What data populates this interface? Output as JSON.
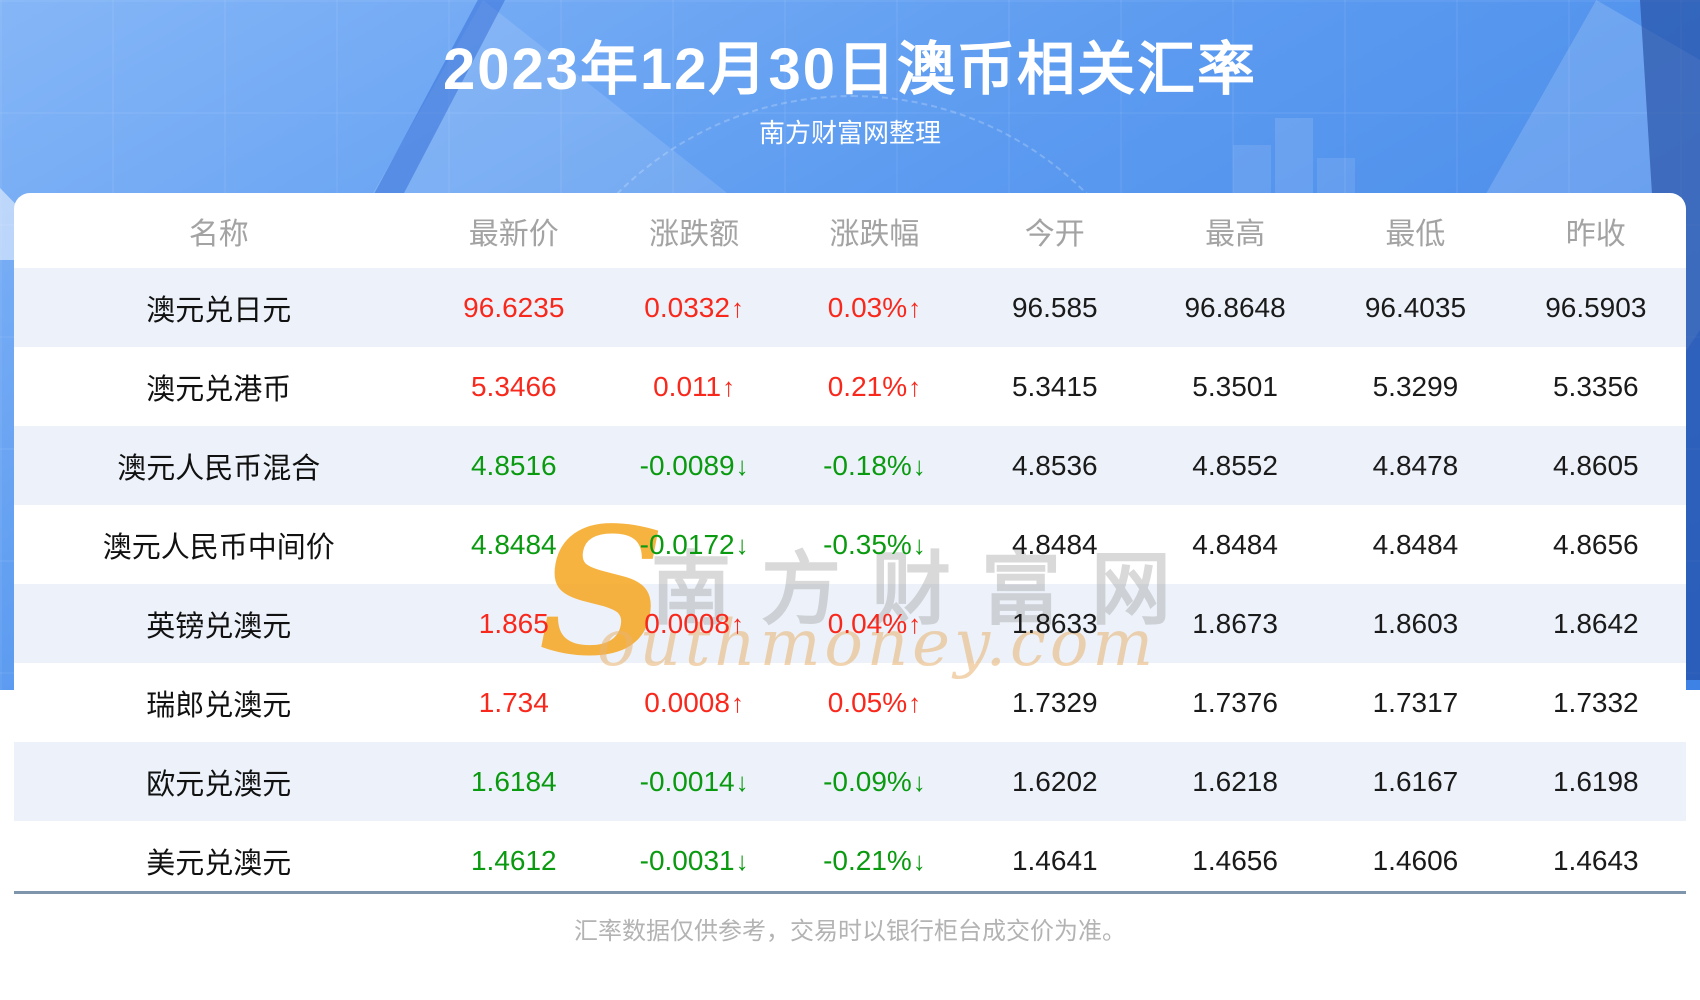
{
  "header": {
    "title": "2023年12月30日澳币相关汇率",
    "subtitle": "南方财富网整理"
  },
  "table": {
    "columns": [
      "名称",
      "最新价",
      "涨跌额",
      "涨跌幅",
      "今开",
      "最高",
      "最低",
      "昨收"
    ],
    "rows": [
      {
        "name": "澳元兑日元",
        "latest": "96.6235",
        "change": "0.0332",
        "change_pct": "0.03%",
        "open": "96.585",
        "high": "96.8648",
        "low": "96.4035",
        "prev_close": "96.5903",
        "trend": "up"
      },
      {
        "name": "澳元兑港币",
        "latest": "5.3466",
        "change": "0.011",
        "change_pct": "0.21%",
        "open": "5.3415",
        "high": "5.3501",
        "low": "5.3299",
        "prev_close": "5.3356",
        "trend": "up"
      },
      {
        "name": "澳元人民币混合",
        "latest": "4.8516",
        "change": "-0.0089",
        "change_pct": "-0.18%",
        "open": "4.8536",
        "high": "4.8552",
        "low": "4.8478",
        "prev_close": "4.8605",
        "trend": "down"
      },
      {
        "name": "澳元人民币中间价",
        "latest": "4.8484",
        "change": "-0.0172",
        "change_pct": "-0.35%",
        "open": "4.8484",
        "high": "4.8484",
        "low": "4.8484",
        "prev_close": "4.8656",
        "trend": "down"
      },
      {
        "name": "英镑兑澳元",
        "latest": "1.865",
        "change": "0.0008",
        "change_pct": "0.04%",
        "open": "1.8633",
        "high": "1.8673",
        "low": "1.8603",
        "prev_close": "1.8642",
        "trend": "up"
      },
      {
        "name": "瑞郎兑澳元",
        "latest": "1.734",
        "change": "0.0008",
        "change_pct": "0.05%",
        "open": "1.7329",
        "high": "1.7376",
        "low": "1.7317",
        "prev_close": "1.7332",
        "trend": "up"
      },
      {
        "name": "欧元兑澳元",
        "latest": "1.6184",
        "change": "-0.0014",
        "change_pct": "-0.09%",
        "open": "1.6202",
        "high": "1.6218",
        "low": "1.6167",
        "prev_close": "1.6198",
        "trend": "down"
      },
      {
        "name": "美元兑澳元",
        "latest": "1.4612",
        "change": "-0.0031",
        "change_pct": "-0.21%",
        "open": "1.4641",
        "high": "1.4656",
        "low": "1.4606",
        "prev_close": "1.4643",
        "trend": "down"
      }
    ]
  },
  "icons": {
    "up": "↑",
    "down": "↓"
  },
  "watermark": {
    "s": "S",
    "cn": "南方财富网",
    "en": "outhmoney.com"
  },
  "footer": {
    "disclaimer": "汇率数据仅供参考，交易时以银行柜台成交价为准。"
  },
  "colors": {
    "up_red": "#f8281c",
    "down_green": "#0a9a10",
    "stripe_blue": "#edf2fa",
    "header_gray": "#a3a3a3",
    "divider_blue_gray": "#7e95ac",
    "background_blue": "#5c9bf0",
    "watermark_orange": "#f6a61e"
  },
  "chart_data": {
    "type": "table",
    "title": "2023年12月30日澳币相关汇率",
    "subtitle": "南方财富网整理",
    "columns": [
      "名称",
      "最新价",
      "涨跌额",
      "涨跌幅",
      "今开",
      "最高",
      "最低",
      "昨收"
    ],
    "rows": [
      [
        "澳元兑日元",
        96.6235,
        0.0332,
        "0.03%",
        96.585,
        96.8648,
        96.4035,
        96.5903
      ],
      [
        "澳元兑港币",
        5.3466,
        0.011,
        "0.21%",
        5.3415,
        5.3501,
        5.3299,
        5.3356
      ],
      [
        "澳元人民币混合",
        4.8516,
        -0.0089,
        "-0.18%",
        4.8536,
        4.8552,
        4.8478,
        4.8605
      ],
      [
        "澳元人民币中间价",
        4.8484,
        -0.0172,
        "-0.35%",
        4.8484,
        4.8484,
        4.8484,
        4.8656
      ],
      [
        "英镑兑澳元",
        1.865,
        0.0008,
        "0.04%",
        1.8633,
        1.8673,
        1.8603,
        1.8642
      ],
      [
        "瑞郎兑澳元",
        1.734,
        0.0008,
        "0.05%",
        1.7329,
        1.7376,
        1.7317,
        1.7332
      ],
      [
        "欧元兑澳元",
        1.6184,
        -0.0014,
        "-0.09%",
        1.6202,
        1.6218,
        1.6167,
        1.6198
      ],
      [
        "美元兑澳元",
        1.4612,
        -0.0031,
        "-0.21%",
        1.4641,
        1.4656,
        1.4606,
        1.4643
      ]
    ]
  }
}
